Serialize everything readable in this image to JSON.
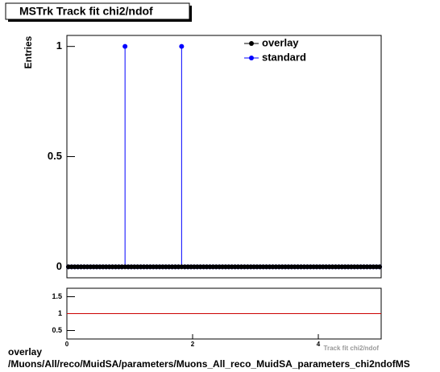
{
  "chart_data": [
    {
      "type": "scatter",
      "title": "MSTrk Track fit chi2/ndof",
      "y_label": "Entries",
      "x": [
        0.025,
        0.075,
        0.125,
        0.175,
        0.225,
        0.275,
        0.325,
        0.375,
        0.425,
        0.475,
        0.525,
        0.575,
        0.625,
        0.675,
        0.725,
        0.775,
        0.825,
        0.875,
        0.925,
        0.975,
        1.025,
        1.075,
        1.125,
        1.175,
        1.225,
        1.275,
        1.325,
        1.375,
        1.425,
        1.475,
        1.525,
        1.575,
        1.625,
        1.675,
        1.725,
        1.775,
        1.825,
        1.875,
        1.925,
        1.975,
        2.025,
        2.075,
        2.125,
        2.175,
        2.225,
        2.275,
        2.325,
        2.375,
        2.425,
        2.475,
        2.525,
        2.575,
        2.625,
        2.675,
        2.725,
        2.775,
        2.825,
        2.875,
        2.925,
        2.975,
        3.025,
        3.075,
        3.125,
        3.175,
        3.225,
        3.275,
        3.325,
        3.375,
        3.425,
        3.475,
        3.525,
        3.575,
        3.625,
        3.675,
        3.725,
        3.775,
        3.825,
        3.875,
        3.925,
        3.975,
        4.025,
        4.075,
        4.125,
        4.175,
        4.225,
        4.275,
        4.325,
        4.375,
        4.425,
        4.475,
        4.525,
        4.575,
        4.625,
        4.675,
        4.725,
        4.775,
        4.825,
        4.875,
        4.925,
        4.975
      ],
      "series": [
        {
          "name": "overlay",
          "color": "#000000",
          "values": [
            0,
            0,
            0,
            0,
            0,
            0,
            0,
            0,
            0,
            0,
            0,
            0,
            0,
            0,
            0,
            0,
            0,
            0,
            0,
            0,
            0,
            0,
            0,
            0,
            0,
            0,
            0,
            0,
            0,
            0,
            0,
            0,
            0,
            0,
            0,
            0,
            0,
            0,
            0,
            0,
            0,
            0,
            0,
            0,
            0,
            0,
            0,
            0,
            0,
            0,
            0,
            0,
            0,
            0,
            0,
            0,
            0,
            0,
            0,
            0,
            0,
            0,
            0,
            0,
            0,
            0,
            0,
            0,
            0,
            0,
            0,
            0,
            0,
            0,
            0,
            0,
            0,
            0,
            0,
            0,
            0,
            0,
            0,
            0,
            0,
            0,
            0,
            0,
            0,
            0,
            0,
            0,
            0,
            0,
            0,
            0,
            0,
            0,
            0,
            0
          ]
        },
        {
          "name": "standard",
          "color": "#0000ff",
          "values": [
            0,
            0,
            0,
            0,
            0,
            0,
            0,
            0,
            0,
            0,
            0,
            0,
            0,
            0,
            0,
            0,
            0,
            0,
            1,
            0,
            0,
            0,
            0,
            0,
            0,
            0,
            0,
            0,
            0,
            0,
            0,
            0,
            0,
            0,
            0,
            0,
            1,
            0,
            0,
            0,
            0,
            0,
            0,
            0,
            0,
            0,
            0,
            0,
            0,
            0,
            0,
            0,
            0,
            0,
            0,
            0,
            0,
            0,
            0,
            0,
            0,
            0,
            0,
            0,
            0,
            0,
            0,
            0,
            0,
            0,
            0,
            0,
            0,
            0,
            0,
            0,
            0,
            0,
            0,
            0,
            0,
            0,
            0,
            0,
            0,
            0,
            0,
            0,
            0,
            0,
            0,
            0,
            0,
            0,
            0,
            0,
            0,
            0,
            0,
            0
          ]
        }
      ],
      "xlim": [
        0,
        5
      ],
      "ylim": [
        -0.05,
        1.05
      ],
      "yticks": [
        0,
        0.5,
        1
      ]
    },
    {
      "type": "line",
      "x_label": "Track fit chi2/ndof",
      "series": [
        {
          "color": "#cc0000",
          "x": [
            0,
            5
          ],
          "values": [
            1,
            1
          ]
        }
      ],
      "xlim": [
        0,
        5
      ],
      "ylim": [
        0.25,
        1.75
      ],
      "xticks": [
        0,
        2,
        4
      ],
      "yticks": [
        0.5,
        1,
        1.5
      ]
    }
  ],
  "footer": {
    "line1": "overlay",
    "line2": "/Muons/All/reco/MuidSA/parameters/Muons_All_reco_MuidSA_parameters_chi2ndofMS"
  }
}
